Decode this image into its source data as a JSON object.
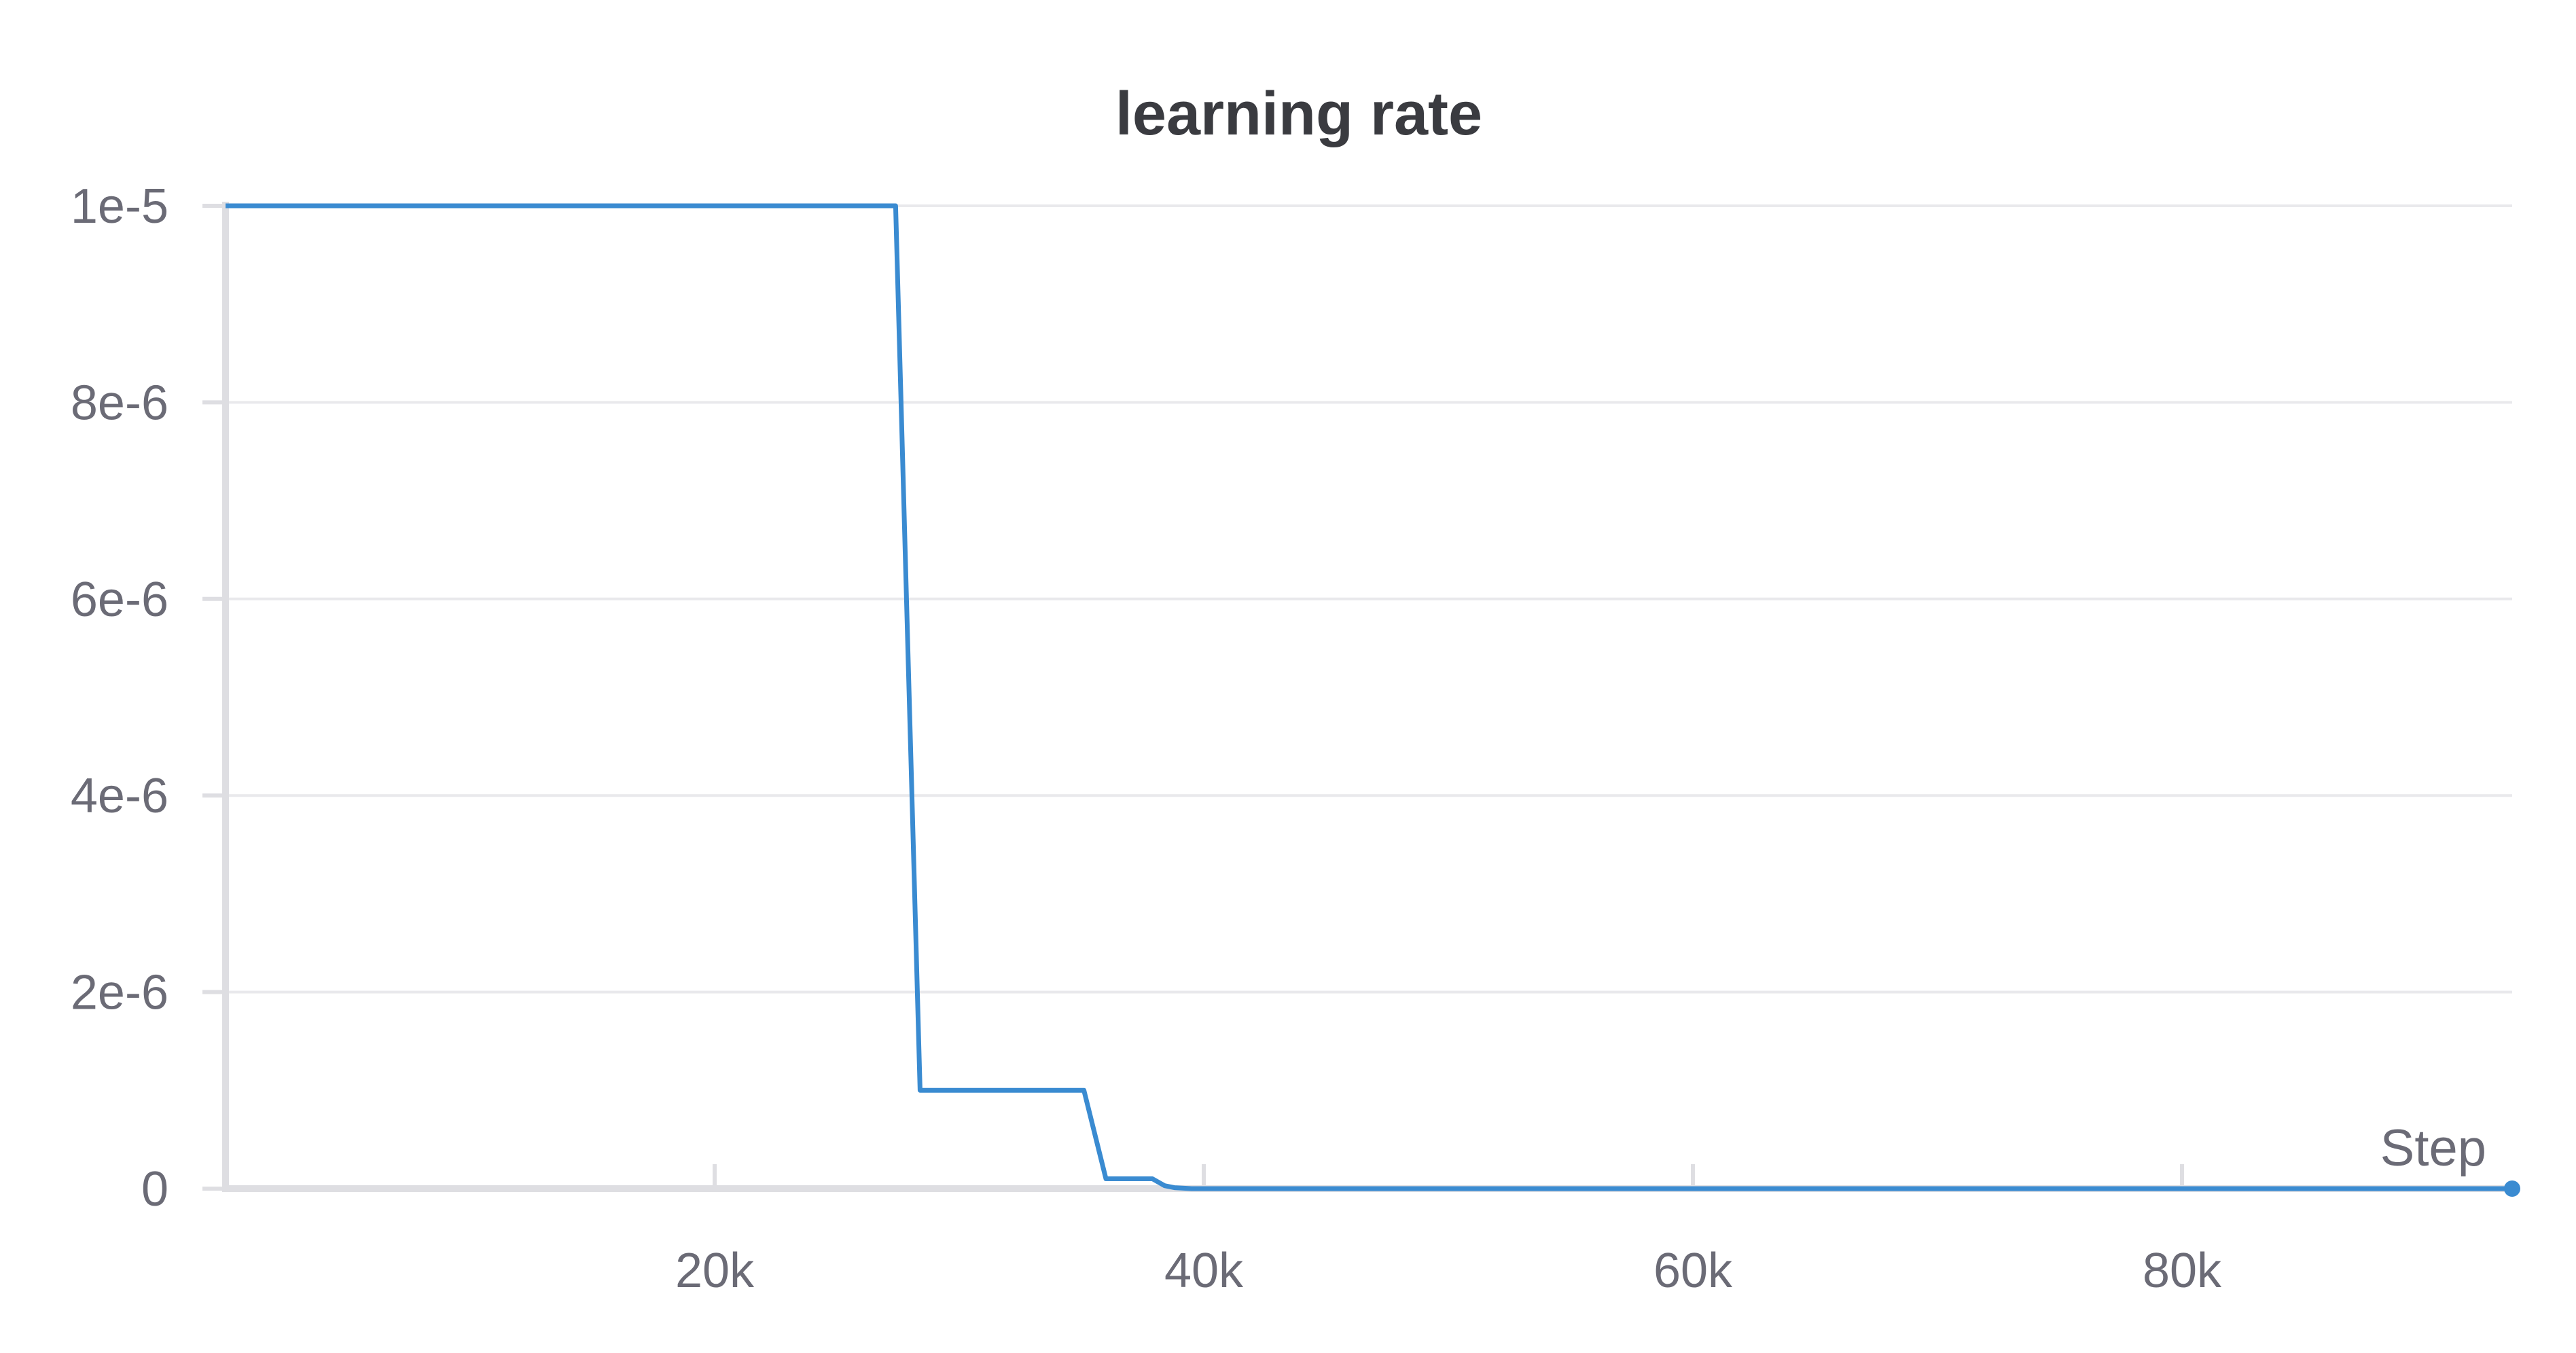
{
  "chart_data": {
    "type": "line",
    "title": "learning rate",
    "xlabel": "Step",
    "ylabel": "",
    "xlim": [
      0,
      93500
    ],
    "ylim": [
      0,
      1e-05
    ],
    "x_ticks": [
      {
        "value": 20000,
        "label": "20k"
      },
      {
        "value": 40000,
        "label": "40k"
      },
      {
        "value": 60000,
        "label": "60k"
      },
      {
        "value": 80000,
        "label": "80k"
      }
    ],
    "y_ticks": [
      {
        "value": 0,
        "label": "0"
      },
      {
        "value": 2e-06,
        "label": "2e-6"
      },
      {
        "value": 4e-06,
        "label": "4e-6"
      },
      {
        "value": 6e-06,
        "label": "6e-6"
      },
      {
        "value": 8e-06,
        "label": "8e-6"
      },
      {
        "value": 1e-05,
        "label": "1e-5"
      }
    ],
    "grid": true,
    "legend": "none",
    "series": [
      {
        "color": "#3a8bd1",
        "x": [
          0,
          27400,
          28400,
          35100,
          36000,
          37900,
          38400,
          38800,
          39500,
          93500
        ],
        "y": [
          1e-05,
          1e-05,
          1e-06,
          1e-06,
          1e-07,
          1e-07,
          3e-08,
          1e-08,
          0,
          0
        ]
      }
    ],
    "end_marker": {
      "x": 93500,
      "y": 0,
      "color": "#3a8bd1"
    }
  }
}
